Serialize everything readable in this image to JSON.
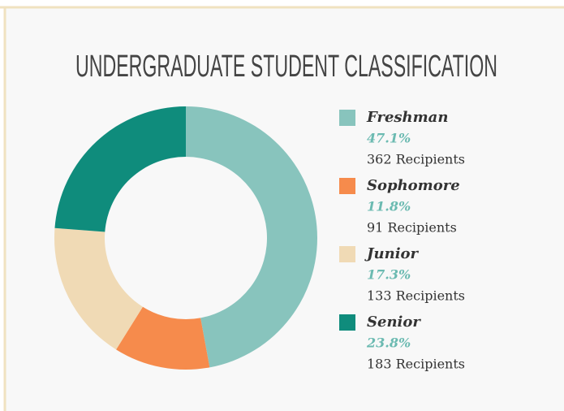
{
  "chart_data": {
    "type": "pie",
    "donut": true,
    "title": "UNDERGRADUATE STUDENT CLASSIFICATION",
    "categories": [
      "Freshman",
      "Sophomore",
      "Junior",
      "Senior"
    ],
    "values": [
      47.1,
      11.8,
      17.3,
      23.8
    ],
    "value_labels": [
      "47.1%",
      "11.8%",
      "17.3%",
      "23.8%"
    ],
    "recipients": [
      "362 Recipients",
      "91 Recipients",
      "133 Recipients",
      "183 Recipients"
    ],
    "colors": [
      "#88c4bd",
      "#f68b4c",
      "#f0dab5",
      "#0f8c7c"
    ],
    "legend": "right"
  }
}
